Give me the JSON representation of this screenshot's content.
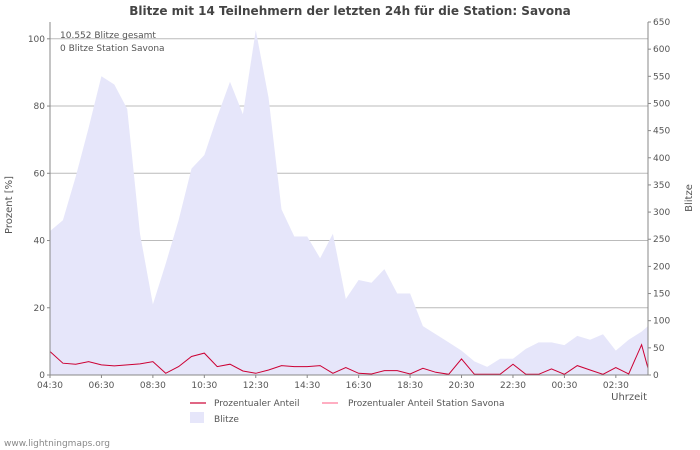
{
  "chart_data": {
    "type": "area",
    "title": "Blitze mit 14 Teilnehmern der letzten 24h für die Station: Savona",
    "ylabel_left": "Prozent   [%]",
    "ylabel_right": "Blitze",
    "xlabel": "Uhrzeit",
    "annotations": [
      "10.552 Blitze gesamt",
      "0 Blitze Station Savona"
    ],
    "ylim_left": [
      0,
      105
    ],
    "ylim_right": [
      0,
      650
    ],
    "yticks_left": [
      0,
      20,
      40,
      60,
      80,
      100
    ],
    "yticks_right": [
      0,
      50,
      100,
      150,
      200,
      250,
      300,
      350,
      400,
      450,
      500,
      550,
      600,
      650
    ],
    "xlim": [
      0,
      23.25
    ],
    "x_tick_labels": [
      "04:30",
      "06:30",
      "08:30",
      "10:30",
      "12:30",
      "14:30",
      "16:30",
      "18:30",
      "20:30",
      "22:30",
      "00:30",
      "02:30"
    ],
    "x_tick_positions": [
      0,
      2,
      4,
      6,
      8,
      10,
      12,
      14,
      16,
      18,
      20,
      22
    ],
    "series": [
      {
        "name": "Blitze",
        "axis": "right",
        "color": "#e6e6fa",
        "x": [
          0,
          0.5,
          1,
          1.5,
          2,
          2.5,
          3,
          3.5,
          4,
          4.5,
          5,
          5.5,
          6,
          6.5,
          7,
          7.5,
          8,
          8.5,
          9,
          9.5,
          10,
          10.5,
          11,
          11.5,
          12,
          12.5,
          13,
          13.5,
          14,
          14.5,
          15,
          15.5,
          16,
          16.5,
          17,
          17.5,
          18,
          18.5,
          19,
          19.5,
          20,
          20.5,
          21,
          21.5,
          22,
          22.5,
          23,
          23.25
        ],
        "values": [
          265,
          285,
          365,
          455,
          550,
          535,
          490,
          260,
          130,
          205,
          285,
          380,
          405,
          475,
          540,
          480,
          635,
          510,
          305,
          255,
          255,
          215,
          260,
          140,
          175,
          170,
          195,
          150,
          150,
          90,
          75,
          60,
          45,
          25,
          15,
          30,
          30,
          48,
          60,
          60,
          55,
          72,
          65,
          75,
          45,
          65,
          80,
          90
        ]
      },
      {
        "name": "Prozentualer Anteil",
        "axis": "left",
        "color": "#cc0033",
        "x": [
          0,
          0.5,
          1,
          1.5,
          2,
          2.5,
          3,
          3.5,
          4,
          4.5,
          5,
          5.5,
          6,
          6.5,
          7,
          7.5,
          8,
          8.5,
          9,
          9.5,
          10,
          10.5,
          11,
          11.5,
          12,
          12.5,
          13,
          13.5,
          14,
          14.5,
          15,
          15.5,
          16,
          16.5,
          17,
          17.5,
          18,
          18.5,
          19,
          19.5,
          20,
          20.5,
          21,
          21.5,
          22,
          22.5,
          23,
          23.25
        ],
        "values": [
          7,
          3.5,
          3.2,
          4,
          3,
          2.7,
          3,
          3.3,
          4,
          0.5,
          2.5,
          5.5,
          6.5,
          2.5,
          3.2,
          1.2,
          0.5,
          1.5,
          2.8,
          2.5,
          2.5,
          2.8,
          0.5,
          2.2,
          0.5,
          0.3,
          1.3,
          1.3,
          0.3,
          2,
          0.8,
          0.2,
          4.8,
          0.2,
          0.2,
          0.2,
          3.2,
          0.2,
          0.2,
          1.8,
          0.2,
          2.8,
          1.5,
          0.2,
          2.2,
          0.3,
          9,
          2
        ]
      },
      {
        "name": "Prozentualer Anteil Station Savona",
        "axis": "left",
        "color": "#ff7799",
        "x": [
          0,
          23.25
        ],
        "values": [
          0,
          0
        ]
      }
    ],
    "legend": [
      "Prozentualer Anteil",
      "Prozentualer Anteil Station Savona",
      "Blitze"
    ],
    "legend_position": "bottom",
    "grid": true
  },
  "footer": {
    "source": "www.lightningmaps.org"
  }
}
